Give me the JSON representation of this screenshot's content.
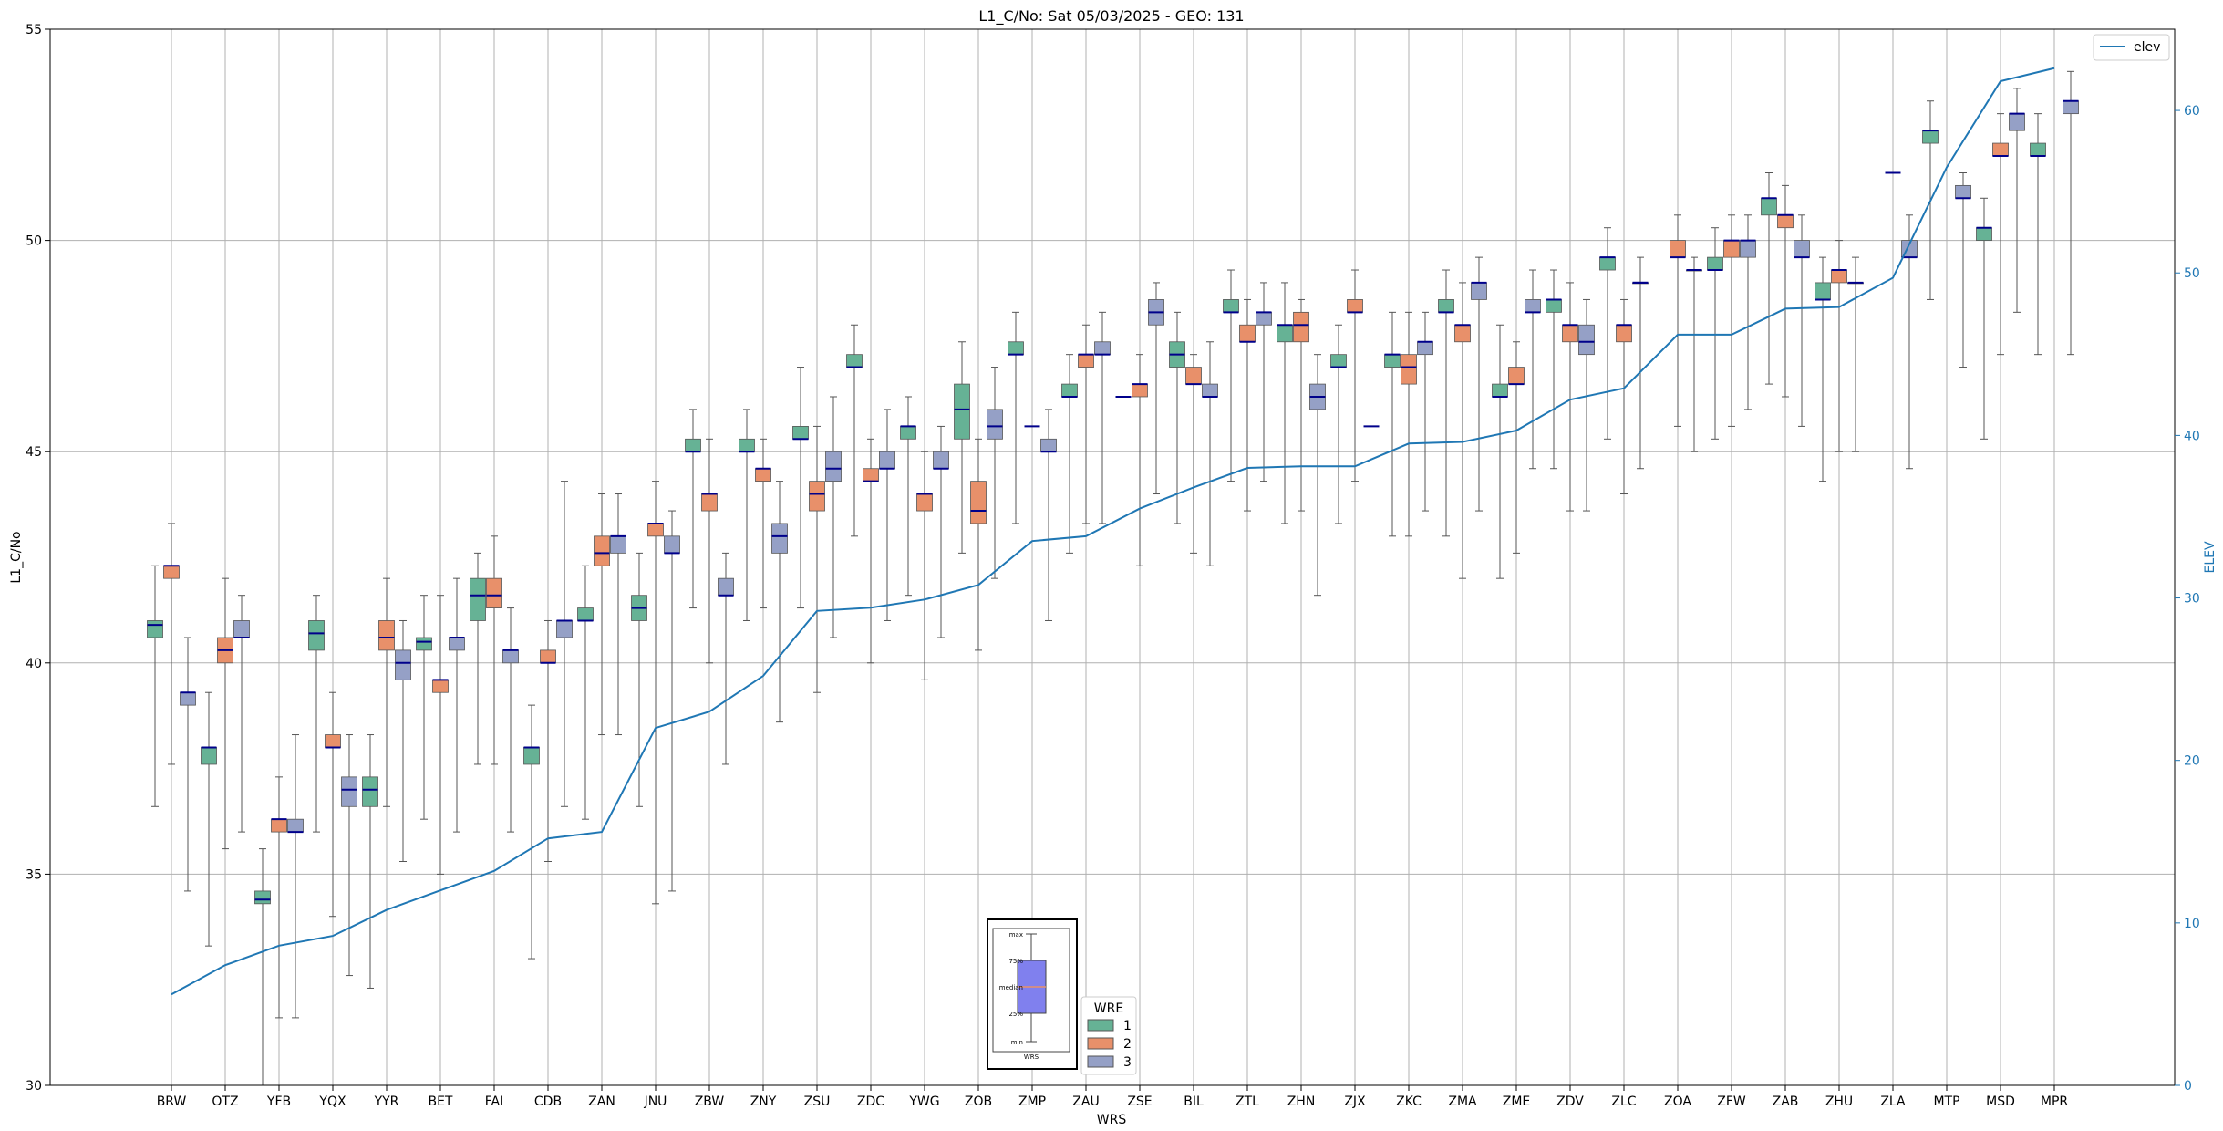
{
  "chart_data": {
    "type": "box",
    "title": "L1_C/No: Sat 05/03/2025 - GEO: 131",
    "xlabel": "WRS",
    "ylabel": "L1_C/No",
    "y2label": "ELEV",
    "ylim": [
      30,
      55
    ],
    "y2lim": [
      0,
      65
    ],
    "yticks": [
      30,
      35,
      40,
      45,
      50,
      55
    ],
    "y2ticks": [
      0,
      10,
      20,
      30,
      40,
      50,
      60
    ],
    "grid": true,
    "categories": [
      "BRW",
      "OTZ",
      "YFB",
      "YQX",
      "YYR",
      "BET",
      "FAI",
      "CDB",
      "ZAN",
      "JNU",
      "ZBW",
      "ZNY",
      "ZSU",
      "ZDC",
      "YWG",
      "ZOB",
      "ZMP",
      "ZAU",
      "ZSE",
      "BIL",
      "ZTL",
      "ZHN",
      "ZJX",
      "ZKC",
      "ZMA",
      "ZME",
      "ZDV",
      "ZLC",
      "ZOA",
      "ZFW",
      "ZAB",
      "ZHU",
      "ZLA",
      "MTP",
      "MSD",
      "MPR"
    ],
    "colors": {
      "1": "#66b295",
      "2": "#e8906a",
      "3": "#95a0c6",
      "median": "#00008b",
      "elev": "#1f77b4",
      "whisker": "#555555"
    },
    "series": [
      {
        "name": "1",
        "boxes": [
          [
            0,
            36.6,
            40.6,
            40.9,
            41.0,
            42.3
          ],
          [
            1,
            33.3,
            37.6,
            38.0,
            38.0,
            39.3
          ],
          [
            2,
            30.0,
            34.3,
            34.4,
            34.6,
            35.6
          ],
          [
            3,
            36.0,
            40.3,
            40.7,
            41.0,
            41.6
          ],
          [
            4,
            32.3,
            36.6,
            37.0,
            37.3,
            38.3
          ],
          [
            5,
            36.3,
            40.3,
            40.5,
            40.6,
            41.6
          ],
          [
            6,
            37.6,
            41.0,
            41.6,
            42.0,
            42.6
          ],
          [
            7,
            33.0,
            37.6,
            38.0,
            38.0,
            39.0
          ],
          [
            8,
            36.3,
            41.0,
            41.0,
            41.3,
            42.3
          ],
          [
            9,
            36.6,
            41.0,
            41.3,
            41.6,
            42.6
          ],
          [
            10,
            41.3,
            45.0,
            45.0,
            45.3,
            46.0
          ],
          [
            11,
            41.0,
            45.0,
            45.0,
            45.3,
            46.0
          ],
          [
            12,
            41.3,
            45.3,
            45.3,
            45.6,
            47.0
          ],
          [
            13,
            43.0,
            47.0,
            47.0,
            47.3,
            48.0
          ],
          [
            14,
            41.6,
            45.3,
            45.6,
            45.6,
            46.3
          ],
          [
            15,
            42.6,
            45.3,
            46.0,
            46.6,
            47.6
          ],
          [
            16,
            43.3,
            47.3,
            47.3,
            47.6,
            48.3
          ],
          [
            17,
            42.6,
            46.3,
            46.3,
            46.6,
            47.3
          ],
          [
            19,
            43.3,
            47.0,
            47.3,
            47.6,
            48.3
          ],
          [
            20,
            44.3,
            48.3,
            48.3,
            48.6,
            49.3
          ],
          [
            21,
            43.3,
            47.6,
            48.0,
            48.0,
            49.0
          ],
          [
            22,
            43.3,
            47.0,
            47.0,
            47.3,
            48.0
          ],
          [
            23,
            43.0,
            47.0,
            47.3,
            47.3,
            48.3
          ],
          [
            24,
            43.0,
            48.3,
            48.3,
            48.6,
            49.3
          ],
          [
            25,
            42.0,
            46.3,
            46.3,
            46.6,
            48.0
          ],
          [
            26,
            44.6,
            48.3,
            48.6,
            48.6,
            49.3
          ],
          [
            27,
            45.3,
            49.3,
            49.6,
            49.6,
            50.3
          ],
          [
            29,
            45.3,
            49.3,
            49.3,
            49.6,
            50.3
          ],
          [
            30,
            46.6,
            50.6,
            51.0,
            51.0,
            51.6
          ],
          [
            31,
            44.3,
            48.6,
            48.6,
            49.0,
            49.6
          ],
          [
            33,
            48.6,
            52.3,
            52.6,
            52.6,
            53.3
          ],
          [
            34,
            45.3,
            50.0,
            50.3,
            50.3,
            51.0
          ],
          [
            35,
            47.3,
            52.0,
            52.0,
            52.3,
            53.0
          ]
        ]
      },
      {
        "name": "2",
        "boxes": [
          [
            0,
            37.6,
            42.0,
            42.3,
            42.3,
            43.3
          ],
          [
            1,
            35.6,
            40.0,
            40.3,
            40.6,
            42.0
          ],
          [
            2,
            31.6,
            36.0,
            36.3,
            36.3,
            37.3
          ],
          [
            3,
            34.0,
            38.0,
            38.0,
            38.3,
            39.3
          ],
          [
            4,
            36.6,
            40.3,
            40.6,
            41.0,
            42.0
          ],
          [
            5,
            35.0,
            39.3,
            39.6,
            39.6,
            41.6
          ],
          [
            6,
            37.6,
            41.3,
            41.6,
            42.0,
            43.0
          ],
          [
            7,
            35.3,
            40.0,
            40.0,
            40.3,
            41.0
          ],
          [
            8,
            38.3,
            42.3,
            42.6,
            43.0,
            44.0
          ],
          [
            9,
            34.3,
            43.0,
            43.3,
            43.3,
            44.3
          ],
          [
            10,
            40.0,
            43.6,
            44.0,
            44.0,
            45.3
          ],
          [
            11,
            41.3,
            44.3,
            44.6,
            44.6,
            45.3
          ],
          [
            12,
            39.3,
            43.6,
            44.0,
            44.3,
            45.6
          ],
          [
            13,
            40.0,
            44.3,
            44.3,
            44.6,
            45.3
          ],
          [
            14,
            39.6,
            43.6,
            44.0,
            44.0,
            45.0
          ],
          [
            15,
            40.3,
            43.3,
            43.6,
            44.3,
            45.3
          ],
          [
            17,
            43.3,
            47.0,
            47.3,
            47.3,
            48.0
          ],
          [
            18,
            42.3,
            46.3,
            46.6,
            46.6,
            47.3
          ],
          [
            19,
            42.6,
            46.6,
            46.6,
            47.0,
            47.3
          ],
          [
            20,
            43.6,
            47.6,
            47.6,
            48.0,
            48.6
          ],
          [
            21,
            43.6,
            47.6,
            48.0,
            48.3,
            48.6
          ],
          [
            22,
            44.3,
            48.3,
            48.3,
            48.6,
            49.3
          ],
          [
            23,
            43.0,
            46.6,
            47.0,
            47.3,
            48.3
          ],
          [
            24,
            42.0,
            47.6,
            48.0,
            48.0,
            49.0
          ],
          [
            25,
            42.6,
            46.6,
            46.6,
            47.0,
            47.6
          ],
          [
            26,
            43.6,
            47.6,
            48.0,
            48.0,
            49.0
          ],
          [
            27,
            44.0,
            47.6,
            48.0,
            48.0,
            48.6
          ],
          [
            28,
            45.6,
            49.6,
            49.6,
            50.0,
            50.6
          ],
          [
            29,
            45.6,
            49.6,
            50.0,
            50.0,
            50.6
          ],
          [
            30,
            46.3,
            50.3,
            50.6,
            50.6,
            51.3
          ],
          [
            31,
            45.0,
            49.0,
            49.3,
            49.3,
            50.0
          ],
          [
            34,
            47.3,
            52.0,
            52.0,
            52.3,
            53.0
          ]
        ]
      },
      {
        "name": "3",
        "boxes": [
          [
            0,
            34.6,
            39.0,
            39.3,
            39.3,
            40.6
          ],
          [
            1,
            36.0,
            40.6,
            40.6,
            41.0,
            41.6
          ],
          [
            2,
            31.6,
            36.0,
            36.0,
            36.3,
            38.3
          ],
          [
            3,
            32.6,
            36.6,
            37.0,
            37.3,
            38.3
          ],
          [
            4,
            35.3,
            39.6,
            40.0,
            40.3,
            41.0
          ],
          [
            5,
            36.0,
            40.3,
            40.6,
            40.6,
            42.0
          ],
          [
            6,
            36.0,
            40.0,
            40.3,
            40.3,
            41.3
          ],
          [
            7,
            36.6,
            40.6,
            41.0,
            41.0,
            44.3
          ],
          [
            8,
            38.3,
            42.6,
            43.0,
            43.0,
            44.0
          ],
          [
            9,
            34.6,
            42.6,
            42.6,
            43.0,
            43.6
          ],
          [
            10,
            37.6,
            41.6,
            41.6,
            42.0,
            42.6
          ],
          [
            11,
            38.6,
            42.6,
            43.0,
            43.3,
            44.3
          ],
          [
            12,
            40.6,
            44.3,
            44.6,
            45.0,
            46.3
          ],
          [
            13,
            41.0,
            44.6,
            44.6,
            45.0,
            46.0
          ],
          [
            14,
            40.6,
            44.6,
            44.6,
            45.0,
            45.6
          ],
          [
            15,
            42.0,
            45.3,
            45.6,
            46.0,
            47.0
          ],
          [
            16,
            41.0,
            45.0,
            45.0,
            45.3,
            46.0
          ],
          [
            17,
            43.3,
            47.3,
            47.3,
            47.6,
            48.3
          ],
          [
            18,
            44.0,
            48.0,
            48.3,
            48.6,
            49.0
          ],
          [
            19,
            42.3,
            46.3,
            46.3,
            46.6,
            47.6
          ],
          [
            20,
            44.3,
            48.0,
            48.3,
            48.3,
            49.0
          ],
          [
            21,
            41.6,
            46.0,
            46.3,
            46.6,
            47.3
          ],
          [
            23,
            43.6,
            47.3,
            47.6,
            47.6,
            48.3
          ],
          [
            24,
            43.6,
            48.6,
            49.0,
            49.0,
            49.6
          ],
          [
            25,
            44.6,
            48.3,
            48.3,
            48.6,
            49.3
          ],
          [
            26,
            43.6,
            47.3,
            47.6,
            48.0,
            48.6
          ],
          [
            27,
            44.6,
            49.0,
            49.0,
            49.0,
            49.6
          ],
          [
            28,
            45.0,
            49.3,
            49.3,
            49.3,
            49.6
          ],
          [
            29,
            46.0,
            49.6,
            50.0,
            50.0,
            50.6
          ],
          [
            30,
            45.6,
            49.6,
            49.6,
            50.0,
            50.6
          ],
          [
            31,
            45.0,
            49.0,
            49.0,
            49.0,
            49.6
          ],
          [
            32,
            44.6,
            49.6,
            49.6,
            50.0,
            50.6
          ],
          [
            33,
            47.0,
            51.0,
            51.0,
            51.3,
            51.6
          ],
          [
            34,
            48.3,
            52.6,
            53.0,
            53.0,
            53.6
          ],
          [
            35,
            47.3,
            53.0,
            53.3,
            53.3,
            54.0
          ]
        ]
      }
    ],
    "single_medians": [
      [
        16,
        1,
        45.6
      ],
      [
        18,
        0,
        46.3
      ],
      [
        22,
        2,
        45.6
      ],
      [
        27,
        2,
        49.0
      ],
      [
        28,
        2,
        49.3
      ],
      [
        32,
        1,
        51.6
      ]
    ],
    "elev_series": {
      "name": "elev",
      "values": [
        5.6,
        7.4,
        8.6,
        9.2,
        10.8,
        12.0,
        13.2,
        15.2,
        15.6,
        22.0,
        23.0,
        25.2,
        29.2,
        29.4,
        29.9,
        30.8,
        33.5,
        33.8,
        35.5,
        36.8,
        38.0,
        38.1,
        38.1,
        39.5,
        39.6,
        40.3,
        42.2,
        42.9,
        46.2,
        46.2,
        47.8,
        47.9,
        49.7,
        56.5,
        61.8,
        62.6
      ]
    },
    "legend_wre": {
      "title": "WRE",
      "entries": [
        "1",
        "2",
        "3"
      ]
    },
    "legend_elev": "elev",
    "inset_key": {
      "labels": [
        "max",
        "75%",
        "median",
        "25%",
        "min"
      ],
      "xlabel": "WRS"
    }
  }
}
